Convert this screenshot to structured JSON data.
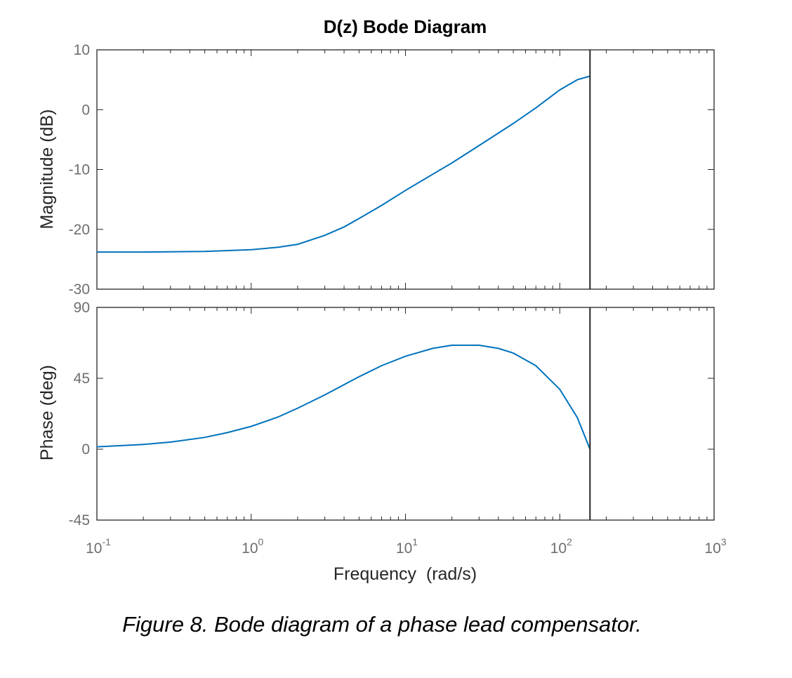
{
  "chart_data": {
    "type": "line",
    "title": "D(z) Bode Diagram",
    "xlabel": "Frequency  (rad/s)",
    "x_scale": "log",
    "xlim": [
      0.1,
      1000
    ],
    "x_tick_labels": [
      {
        "base": "10",
        "exp": "-1"
      },
      {
        "base": "10",
        "exp": "0"
      },
      {
        "base": "10",
        "exp": "1"
      },
      {
        "base": "10",
        "exp": "2"
      },
      {
        "base": "10",
        "exp": "3"
      }
    ],
    "nyquist_line_x": 157,
    "grid": false,
    "series_color": "#0072bd",
    "panels": [
      {
        "name": "magnitude",
        "ylabel": "Magnitude (dB)",
        "ylim": [
          -30,
          10
        ],
        "y_ticks": [
          "10",
          "0",
          "-10",
          "-20",
          "-30"
        ],
        "x": [
          0.1,
          0.2,
          0.5,
          1,
          1.5,
          2,
          3,
          4,
          5,
          7,
          10,
          15,
          20,
          30,
          50,
          70,
          100,
          130,
          157
        ],
        "y": [
          -23.8,
          -23.8,
          -23.7,
          -23.4,
          -23.0,
          -22.5,
          -21.0,
          -19.6,
          -18.2,
          -16.0,
          -13.5,
          -10.8,
          -8.9,
          -6.0,
          -2.3,
          0.3,
          3.3,
          5.0,
          5.6
        ]
      },
      {
        "name": "phase",
        "ylabel": "Phase (deg)",
        "ylim": [
          -45,
          90
        ],
        "y_ticks": [
          "90",
          "45",
          "0",
          "-45"
        ],
        "x": [
          0.1,
          0.2,
          0.3,
          0.5,
          0.7,
          1,
          1.5,
          2,
          3,
          4,
          5,
          7,
          10,
          15,
          20,
          30,
          40,
          50,
          70,
          100,
          130,
          157
        ],
        "y": [
          1.5,
          3.0,
          4.5,
          7.5,
          10.5,
          14.5,
          20.5,
          26.0,
          34.5,
          41.0,
          46.0,
          53.0,
          59.0,
          64.0,
          66.0,
          66.0,
          64.0,
          61.0,
          53.0,
          38.0,
          20.0,
          0.0
        ]
      }
    ]
  },
  "caption": "Figure 8. Bode diagram of a phase lead compensator."
}
